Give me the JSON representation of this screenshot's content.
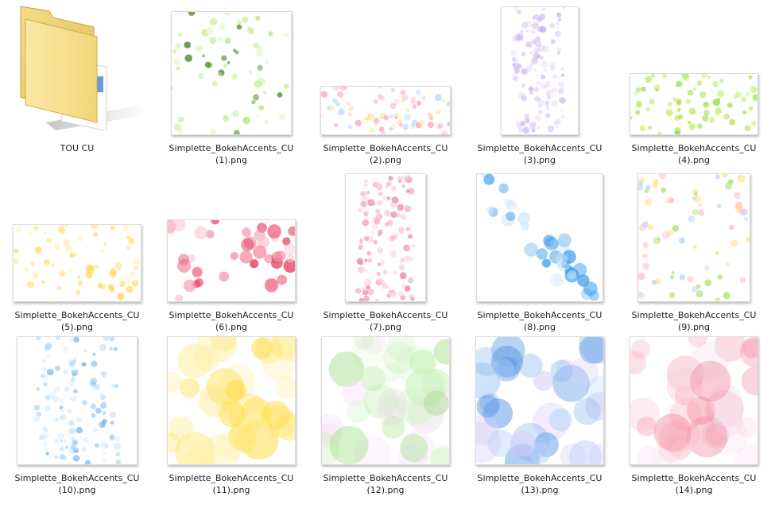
{
  "window": {
    "view": "Large icons"
  },
  "folder": {
    "name": "TOU CU",
    "icon": "folder-icon"
  },
  "files": [
    {
      "name": "Simplette_BokehAccents_CU",
      "suffix": "(1).png",
      "palette": [
        "#c9ef9a",
        "#b0e56a",
        "#e6f7cc",
        "#3f7f1f"
      ]
    },
    {
      "name": "Simplette_BokehAccents_CU",
      "suffix": "(2).png",
      "palette": [
        "#ffc8d6",
        "#ffe59a",
        "#a8d8ff",
        "#ff9fb8"
      ]
    },
    {
      "name": "Simplette_BokehAccents_CU",
      "suffix": "(3).png",
      "palette": [
        "#d9c7f5",
        "#c7aef0",
        "#e9dcfb"
      ]
    },
    {
      "name": "Simplette_BokehAccents_CU",
      "suffix": "(4).png",
      "palette": [
        "#a8e63a",
        "#c8f07a",
        "#8fd42a"
      ]
    },
    {
      "name": "Simplette_BokehAccents_CU",
      "suffix": "(5).png",
      "palette": [
        "#ffe07a",
        "#ffd24a",
        "#fff0b0"
      ]
    },
    {
      "name": "Simplette_BokehAccents_CU",
      "suffix": "(6).png",
      "palette": [
        "#ee5a78",
        "#f58da2",
        "#fbc6d2",
        "#e23858"
      ]
    },
    {
      "name": "Simplette_BokehAccents_CU",
      "suffix": "(7).png",
      "palette": [
        "#f07aa2",
        "#f6a9c2",
        "#fad0de"
      ]
    },
    {
      "name": "Simplette_BokehAccents_CU",
      "suffix": "(8).png",
      "palette": [
        "#3a9be8",
        "#86c3f4",
        "#cfe6fb"
      ]
    },
    {
      "name": "Simplette_BokehAccents_CU",
      "suffix": "(9).png",
      "palette": [
        "#ffb3c6",
        "#a8e063",
        "#a9d4f7",
        "#ffe08a"
      ]
    },
    {
      "name": "Simplette_BokehAccents_CU",
      "suffix": "(10).png",
      "palette": [
        "#6cb6ee",
        "#a6d3f6",
        "#d6ebfb"
      ]
    },
    {
      "name": "Simplette_BokehAccents_CU",
      "suffix": "(11).png",
      "palette": [
        "#ffe56a",
        "#fff1a8",
        "#ffd93a"
      ]
    },
    {
      "name": "Simplette_BokehAccents_CU",
      "suffix": "(12).png",
      "palette": [
        "#c4f0b4",
        "#e2f8da",
        "#a6e08e",
        "#f6dff5"
      ]
    },
    {
      "name": "Simplette_BokehAccents_CU",
      "suffix": "(13).png",
      "palette": [
        "#7fb3ef",
        "#b6d3f7",
        "#5d9ae6",
        "#d6ccf6"
      ]
    },
    {
      "name": "Simplette_BokehAccents_CU",
      "suffix": "(14).png",
      "palette": [
        "#f7a9b9",
        "#fbd0da",
        "#f28aa2",
        "#f6e2ef"
      ]
    }
  ]
}
